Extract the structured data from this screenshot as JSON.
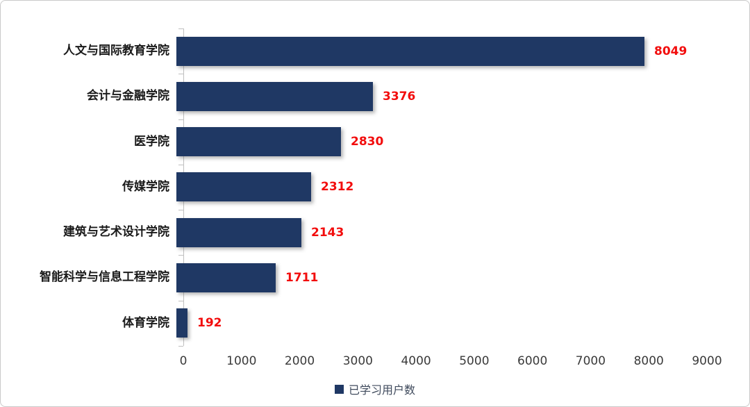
{
  "chart_data": {
    "type": "bar",
    "orientation": "horizontal",
    "title": "",
    "xlabel": "",
    "ylabel": "",
    "categories": [
      "人文与国际教育学院",
      "会计与金融学院",
      "医学院",
      "传媒学院",
      "建筑与艺术设计学院",
      "智能科学与信息工程学院",
      "体育学院"
    ],
    "values": [
      8049,
      3376,
      2830,
      2312,
      2143,
      1711,
      192
    ],
    "series_name": "已学习用户数",
    "xlim": [
      0,
      9000
    ],
    "x_ticks": [
      0,
      1000,
      2000,
      3000,
      4000,
      5000,
      6000,
      7000,
      8000,
      9000
    ],
    "grid": false,
    "legend_position": "bottom",
    "colors": {
      "bar": "#1f3864",
      "value_label": "#f20d0d",
      "axis": "#bfbfbf",
      "tick_label": "#3a3a3a",
      "legend_text": "#3f4a5c"
    }
  },
  "legend": {
    "label": "已学习用户数",
    "swatch_icon": "square-icon"
  }
}
